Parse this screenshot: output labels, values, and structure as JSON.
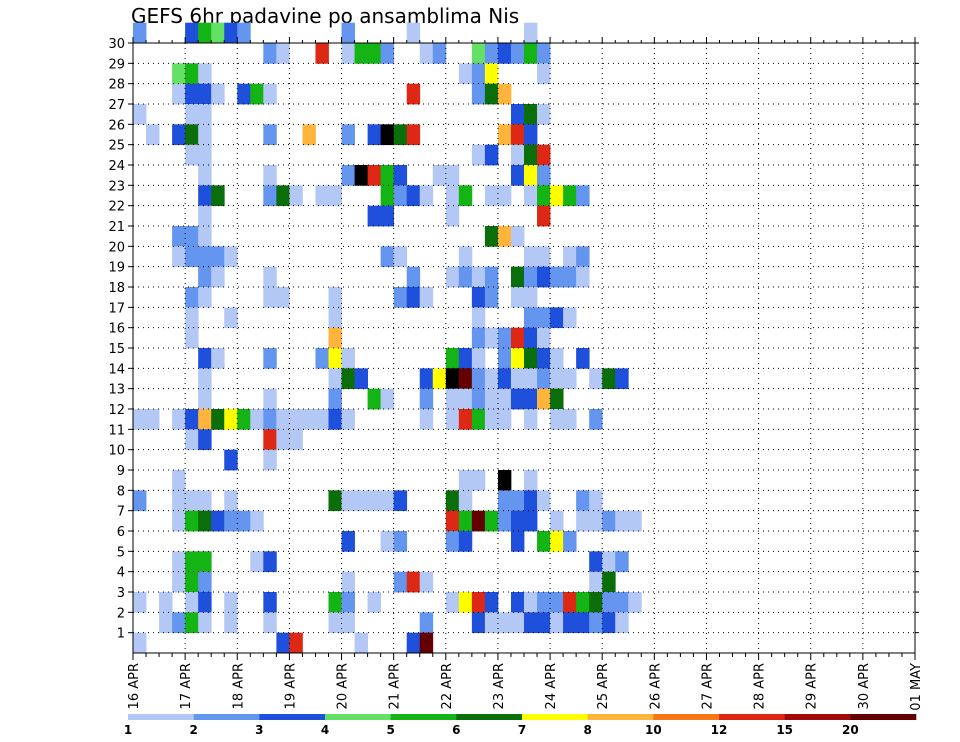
{
  "chart_data": {
    "type": "heatmap",
    "title": "GEFS 6hr padavine po ansamblima Nis",
    "x_tick_labels": [
      "16 APR",
      "17 APR",
      "18 APR",
      "19 APR",
      "20 APR",
      "21 APR",
      "22 APR",
      "23 APR",
      "24 APR",
      "25 APR",
      "26 APR",
      "27 APR",
      "28 APR",
      "29 APR",
      "30 APR",
      "01 MAY"
    ],
    "y_tick_labels": [
      "1",
      "2",
      "3",
      "4",
      "5",
      "6",
      "7",
      "8",
      "9",
      "10",
      "11",
      "12",
      "13",
      "14",
      "15",
      "16",
      "17",
      "18",
      "19",
      "20",
      "21",
      "22",
      "23",
      "24",
      "25",
      "26",
      "27",
      "28",
      "29",
      "30"
    ],
    "x_steps_per_label": 4,
    "y_range": [
      0,
      30
    ],
    "grid": true,
    "legend": {
      "placement": "bottom",
      "levels": [
        "1",
        "2",
        "3",
        "4",
        "5",
        "6",
        "7",
        "8",
        "10",
        "12",
        "15",
        "20"
      ],
      "colors": [
        "#b4c8f5",
        "#6496f0",
        "#1e50dc",
        "#64e164",
        "#14b414",
        "#0a6e0a",
        "#ffff00",
        "#ffb43c",
        "#f57814",
        "#dc2814",
        "#a00a0a",
        "#640000"
      ]
    },
    "cells": [
      [
        0,
        30,
        2
      ],
      [
        4,
        30,
        3
      ],
      [
        5,
        30,
        5
      ],
      [
        6,
        30,
        4
      ],
      [
        7,
        30,
        3
      ],
      [
        8,
        30,
        2
      ],
      [
        16,
        30,
        2
      ],
      [
        21,
        30,
        1
      ],
      [
        30,
        30,
        1
      ],
      [
        10,
        29,
        2
      ],
      [
        11,
        29,
        1
      ],
      [
        14,
        29,
        10
      ],
      [
        16,
        29,
        1
      ],
      [
        17,
        29,
        5
      ],
      [
        18,
        29,
        5
      ],
      [
        19,
        29,
        2
      ],
      [
        22,
        29,
        1
      ],
      [
        23,
        29,
        2
      ],
      [
        26,
        29,
        4
      ],
      [
        27,
        29,
        2
      ],
      [
        28,
        29,
        3
      ],
      [
        29,
        29,
        2
      ],
      [
        30,
        29,
        5
      ],
      [
        31,
        29,
        2
      ],
      [
        3,
        28,
        4
      ],
      [
        4,
        28,
        5
      ],
      [
        5,
        28,
        1
      ],
      [
        25,
        28,
        1
      ],
      [
        26,
        28,
        2
      ],
      [
        27,
        28,
        7
      ],
      [
        31,
        28,
        1
      ],
      [
        3,
        27,
        1
      ],
      [
        4,
        27,
        3
      ],
      [
        5,
        27,
        3
      ],
      [
        6,
        27,
        1
      ],
      [
        8,
        27,
        3
      ],
      [
        9,
        27,
        5
      ],
      [
        10,
        27,
        1
      ],
      [
        21,
        27,
        10
      ],
      [
        26,
        27,
        2
      ],
      [
        27,
        27,
        6
      ],
      [
        28,
        27,
        8
      ],
      [
        0,
        26,
        1
      ],
      [
        4,
        26,
        1
      ],
      [
        5,
        26,
        1
      ],
      [
        29,
        26,
        3
      ],
      [
        30,
        26,
        6
      ],
      [
        31,
        26,
        1
      ],
      [
        1,
        25,
        1
      ],
      [
        3,
        25,
        3
      ],
      [
        4,
        25,
        6
      ],
      [
        5,
        25,
        1
      ],
      [
        10,
        25,
        2
      ],
      [
        13,
        25,
        8
      ],
      [
        16,
        25,
        2
      ],
      [
        18,
        25,
        3
      ],
      [
        19,
        25,
        15
      ],
      [
        20,
        25,
        6
      ],
      [
        21,
        25,
        10
      ],
      [
        28,
        25,
        8
      ],
      [
        29,
        25,
        10
      ],
      [
        30,
        25,
        3
      ],
      [
        4,
        24,
        1
      ],
      [
        5,
        24,
        1
      ],
      [
        26,
        24,
        1
      ],
      [
        27,
        24,
        3
      ],
      [
        29,
        24,
        1
      ],
      [
        30,
        24,
        6
      ],
      [
        31,
        24,
        10
      ],
      [
        5,
        23,
        1
      ],
      [
        10,
        23,
        1
      ],
      [
        16,
        23,
        2
      ],
      [
        17,
        23,
        15
      ],
      [
        18,
        23,
        10
      ],
      [
        19,
        23,
        5
      ],
      [
        20,
        23,
        3
      ],
      [
        23,
        23,
        1
      ],
      [
        24,
        23,
        1
      ],
      [
        29,
        23,
        3
      ],
      [
        30,
        23,
        7
      ],
      [
        31,
        23,
        2
      ],
      [
        5,
        22,
        3
      ],
      [
        6,
        22,
        6
      ],
      [
        10,
        22,
        2
      ],
      [
        11,
        22,
        6
      ],
      [
        12,
        22,
        1
      ],
      [
        14,
        22,
        1
      ],
      [
        15,
        22,
        1
      ],
      [
        19,
        22,
        5
      ],
      [
        20,
        22,
        2
      ],
      [
        21,
        22,
        3
      ],
      [
        22,
        22,
        1
      ],
      [
        24,
        22,
        1
      ],
      [
        25,
        22,
        5
      ],
      [
        27,
        22,
        1
      ],
      [
        28,
        22,
        1
      ],
      [
        30,
        22,
        1
      ],
      [
        31,
        22,
        5
      ],
      [
        32,
        22,
        7
      ],
      [
        33,
        22,
        5
      ],
      [
        34,
        22,
        2
      ],
      [
        5,
        21,
        1
      ],
      [
        18,
        21,
        3
      ],
      [
        19,
        21,
        3
      ],
      [
        24,
        21,
        1
      ],
      [
        31,
        21,
        10
      ],
      [
        3,
        20,
        2
      ],
      [
        4,
        20,
        2
      ],
      [
        5,
        20,
        1
      ],
      [
        27,
        20,
        6
      ],
      [
        28,
        20,
        8
      ],
      [
        29,
        20,
        1
      ],
      [
        3,
        19,
        1
      ],
      [
        4,
        19,
        2
      ],
      [
        5,
        19,
        2
      ],
      [
        6,
        19,
        2
      ],
      [
        7,
        19,
        1
      ],
      [
        19,
        19,
        2
      ],
      [
        20,
        19,
        1
      ],
      [
        25,
        19,
        1
      ],
      [
        30,
        19,
        1
      ],
      [
        31,
        19,
        1
      ],
      [
        33,
        19,
        1
      ],
      [
        34,
        19,
        2
      ],
      [
        5,
        18,
        2
      ],
      [
        6,
        18,
        1
      ],
      [
        10,
        18,
        1
      ],
      [
        21,
        18,
        2
      ],
      [
        24,
        18,
        1
      ],
      [
        25,
        18,
        2
      ],
      [
        26,
        18,
        1
      ],
      [
        27,
        18,
        2
      ],
      [
        29,
        18,
        6
      ],
      [
        30,
        18,
        2
      ],
      [
        31,
        18,
        3
      ],
      [
        32,
        18,
        2
      ],
      [
        33,
        18,
        2
      ],
      [
        34,
        18,
        1
      ],
      [
        4,
        17,
        2
      ],
      [
        5,
        17,
        1
      ],
      [
        10,
        17,
        1
      ],
      [
        11,
        17,
        1
      ],
      [
        15,
        17,
        1
      ],
      [
        20,
        17,
        2
      ],
      [
        21,
        17,
        3
      ],
      [
        22,
        17,
        1
      ],
      [
        26,
        17,
        3
      ],
      [
        27,
        17,
        2
      ],
      [
        29,
        17,
        1
      ],
      [
        30,
        17,
        1
      ],
      [
        4,
        16,
        1
      ],
      [
        7,
        16,
        1
      ],
      [
        15,
        16,
        1
      ],
      [
        26,
        16,
        1
      ],
      [
        30,
        16,
        2
      ],
      [
        31,
        16,
        2
      ],
      [
        32,
        16,
        3
      ],
      [
        33,
        16,
        1
      ],
      [
        4,
        15,
        1
      ],
      [
        15,
        15,
        8
      ],
      [
        26,
        15,
        2
      ],
      [
        27,
        15,
        1
      ],
      [
        28,
        15,
        2
      ],
      [
        29,
        15,
        10
      ],
      [
        30,
        15,
        3
      ],
      [
        31,
        15,
        1
      ],
      [
        5,
        14,
        3
      ],
      [
        6,
        14,
        1
      ],
      [
        10,
        14,
        2
      ],
      [
        14,
        14,
        2
      ],
      [
        15,
        14,
        7
      ],
      [
        16,
        14,
        1
      ],
      [
        24,
        14,
        5
      ],
      [
        25,
        14,
        3
      ],
      [
        26,
        14,
        1
      ],
      [
        28,
        14,
        2
      ],
      [
        29,
        14,
        7
      ],
      [
        30,
        14,
        6
      ],
      [
        31,
        14,
        3
      ],
      [
        32,
        14,
        1
      ],
      [
        34,
        14,
        3
      ],
      [
        5,
        13,
        1
      ],
      [
        15,
        13,
        1
      ],
      [
        16,
        13,
        6
      ],
      [
        17,
        13,
        3
      ],
      [
        22,
        13,
        3
      ],
      [
        23,
        13,
        7
      ],
      [
        24,
        13,
        15
      ],
      [
        25,
        13,
        12
      ],
      [
        26,
        13,
        2
      ],
      [
        27,
        13,
        1
      ],
      [
        28,
        13,
        3
      ],
      [
        29,
        13,
        1
      ],
      [
        30,
        13,
        1
      ],
      [
        31,
        13,
        2
      ],
      [
        32,
        13,
        1
      ],
      [
        33,
        13,
        1
      ],
      [
        35,
        13,
        1
      ],
      [
        36,
        13,
        6
      ],
      [
        37,
        13,
        3
      ],
      [
        5,
        12,
        1
      ],
      [
        10,
        12,
        1
      ],
      [
        15,
        12,
        2
      ],
      [
        18,
        12,
        5
      ],
      [
        19,
        12,
        1
      ],
      [
        22,
        12,
        2
      ],
      [
        24,
        12,
        1
      ],
      [
        25,
        12,
        1
      ],
      [
        26,
        12,
        2
      ],
      [
        27,
        12,
        1
      ],
      [
        28,
        12,
        1
      ],
      [
        29,
        12,
        3
      ],
      [
        30,
        12,
        3
      ],
      [
        31,
        12,
        8
      ],
      [
        32,
        12,
        6
      ],
      [
        0,
        11,
        1
      ],
      [
        1,
        11,
        1
      ],
      [
        3,
        11,
        1
      ],
      [
        4,
        11,
        3
      ],
      [
        5,
        11,
        8
      ],
      [
        6,
        11,
        6
      ],
      [
        7,
        11,
        7
      ],
      [
        8,
        11,
        5
      ],
      [
        9,
        11,
        1
      ],
      [
        10,
        11,
        2
      ],
      [
        11,
        11,
        1
      ],
      [
        12,
        11,
        1
      ],
      [
        13,
        11,
        1
      ],
      [
        14,
        11,
        1
      ],
      [
        15,
        11,
        3
      ],
      [
        16,
        11,
        1
      ],
      [
        22,
        11,
        1
      ],
      [
        24,
        11,
        1
      ],
      [
        25,
        11,
        10
      ],
      [
        26,
        11,
        5
      ],
      [
        27,
        11,
        1
      ],
      [
        28,
        11,
        1
      ],
      [
        30,
        11,
        1
      ],
      [
        32,
        11,
        1
      ],
      [
        33,
        11,
        1
      ],
      [
        35,
        11,
        2
      ],
      [
        4,
        10,
        1
      ],
      [
        5,
        10,
        3
      ],
      [
        10,
        10,
        10
      ],
      [
        11,
        10,
        1
      ],
      [
        12,
        10,
        1
      ],
      [
        7,
        9,
        3
      ],
      [
        10,
        9,
        1
      ],
      [
        3,
        8,
        1
      ],
      [
        25,
        8,
        1
      ],
      [
        26,
        8,
        1
      ],
      [
        28,
        8,
        20
      ],
      [
        30,
        8,
        1
      ],
      [
        0,
        7,
        2
      ],
      [
        3,
        7,
        1
      ],
      [
        4,
        7,
        1
      ],
      [
        5,
        7,
        1
      ],
      [
        7,
        7,
        1
      ],
      [
        15,
        7,
        6
      ],
      [
        16,
        7,
        1
      ],
      [
        17,
        7,
        1
      ],
      [
        18,
        7,
        1
      ],
      [
        19,
        7,
        1
      ],
      [
        20,
        7,
        3
      ],
      [
        24,
        7,
        6
      ],
      [
        25,
        7,
        1
      ],
      [
        28,
        7,
        2
      ],
      [
        29,
        7,
        2
      ],
      [
        30,
        7,
        3
      ],
      [
        31,
        7,
        1
      ],
      [
        34,
        7,
        2
      ],
      [
        35,
        7,
        1
      ],
      [
        3,
        6,
        1
      ],
      [
        4,
        6,
        5
      ],
      [
        5,
        6,
        6
      ],
      [
        6,
        6,
        3
      ],
      [
        7,
        6,
        2
      ],
      [
        8,
        6,
        2
      ],
      [
        9,
        6,
        1
      ],
      [
        24,
        6,
        10
      ],
      [
        25,
        6,
        5
      ],
      [
        26,
        6,
        12
      ],
      [
        27,
        6,
        5
      ],
      [
        28,
        6,
        2
      ],
      [
        29,
        6,
        3
      ],
      [
        30,
        6,
        3
      ],
      [
        32,
        6,
        1
      ],
      [
        34,
        6,
        1
      ],
      [
        35,
        6,
        1
      ],
      [
        36,
        6,
        2
      ],
      [
        37,
        6,
        1
      ],
      [
        38,
        6,
        1
      ],
      [
        16,
        5,
        3
      ],
      [
        19,
        5,
        1
      ],
      [
        20,
        5,
        2
      ],
      [
        24,
        5,
        2
      ],
      [
        25,
        5,
        3
      ],
      [
        29,
        5,
        3
      ],
      [
        31,
        5,
        5
      ],
      [
        32,
        5,
        7
      ],
      [
        33,
        5,
        2
      ],
      [
        3,
        4,
        1
      ],
      [
        4,
        4,
        5
      ],
      [
        5,
        4,
        5
      ],
      [
        9,
        4,
        1
      ],
      [
        10,
        4,
        3
      ],
      [
        35,
        4,
        3
      ],
      [
        36,
        4,
        1
      ],
      [
        37,
        4,
        2
      ],
      [
        3,
        3,
        1
      ],
      [
        4,
        3,
        5
      ],
      [
        5,
        3,
        2
      ],
      [
        16,
        3,
        1
      ],
      [
        20,
        3,
        2
      ],
      [
        21,
        3,
        10
      ],
      [
        22,
        3,
        1
      ],
      [
        35,
        3,
        1
      ],
      [
        36,
        3,
        6
      ],
      [
        0,
        2,
        1
      ],
      [
        2,
        2,
        1
      ],
      [
        4,
        2,
        1
      ],
      [
        5,
        2,
        3
      ],
      [
        7,
        2,
        1
      ],
      [
        10,
        2,
        3
      ],
      [
        15,
        2,
        5
      ],
      [
        16,
        2,
        2
      ],
      [
        18,
        2,
        1
      ],
      [
        24,
        2,
        1
      ],
      [
        25,
        2,
        7
      ],
      [
        26,
        2,
        10
      ],
      [
        27,
        2,
        3
      ],
      [
        29,
        2,
        3
      ],
      [
        30,
        2,
        1
      ],
      [
        31,
        2,
        2
      ],
      [
        32,
        2,
        2
      ],
      [
        33,
        2,
        10
      ],
      [
        34,
        2,
        5
      ],
      [
        35,
        2,
        6
      ],
      [
        36,
        2,
        2
      ],
      [
        37,
        2,
        2
      ],
      [
        38,
        2,
        1
      ],
      [
        2,
        1,
        1
      ],
      [
        3,
        1,
        2
      ],
      [
        4,
        1,
        5
      ],
      [
        5,
        1,
        1
      ],
      [
        7,
        1,
        1
      ],
      [
        10,
        1,
        1
      ],
      [
        15,
        1,
        1
      ],
      [
        16,
        1,
        1
      ],
      [
        22,
        1,
        2
      ],
      [
        26,
        1,
        3
      ],
      [
        27,
        1,
        1
      ],
      [
        28,
        1,
        1
      ],
      [
        29,
        1,
        1
      ],
      [
        30,
        1,
        3
      ],
      [
        31,
        1,
        3
      ],
      [
        32,
        1,
        1
      ],
      [
        33,
        1,
        3
      ],
      [
        34,
        1,
        3
      ],
      [
        35,
        1,
        2
      ],
      [
        36,
        1,
        3
      ],
      [
        37,
        1,
        1
      ],
      [
        0,
        0,
        1
      ],
      [
        11,
        0,
        3
      ],
      [
        12,
        0,
        10
      ],
      [
        17,
        0,
        1
      ],
      [
        21,
        0,
        3
      ],
      [
        22,
        0,
        12
      ]
    ]
  }
}
